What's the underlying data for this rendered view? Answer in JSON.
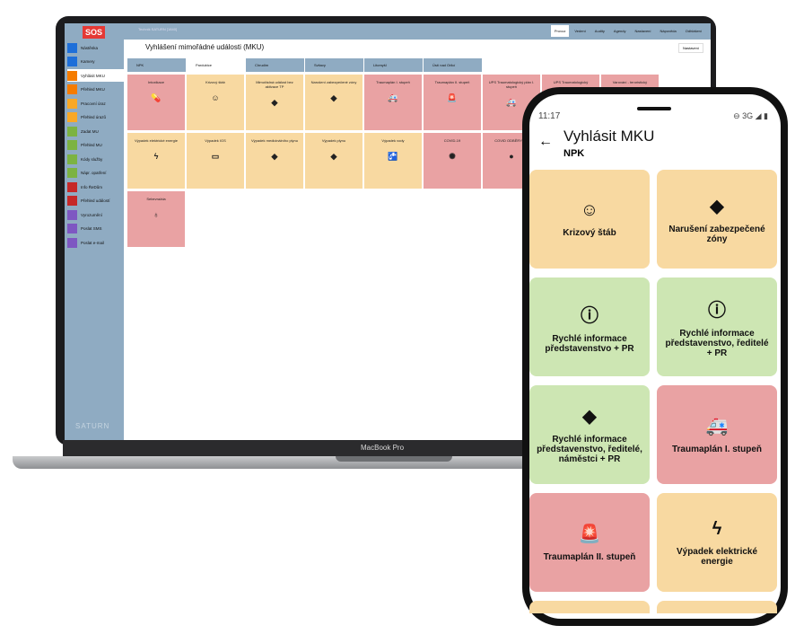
{
  "laptop": {
    "logo": "SOS",
    "user": "Technik SATURN [1840]",
    "brand": "SATURN",
    "model_label": "MacBook Pro",
    "page_title": "Vyhlášení mimořádné události (MKU)",
    "settings_button": "Nastavení",
    "nav": [
      "Provoz",
      "Vedení",
      "Audity",
      "Agendy",
      "Nastavení",
      "Nápověda",
      "Odhlášení"
    ],
    "sidebar": [
      {
        "label": "Nástěnka",
        "color": "#1e6fd9"
      },
      {
        "label": "Kamery",
        "color": "#1e6fd9"
      },
      {
        "label": "Vyhlásit MKU",
        "color": "#f57c00"
      },
      {
        "label": "Přehled MKU",
        "color": "#f57c00"
      },
      {
        "label": "Pracovní úraz",
        "color": "#f9a825"
      },
      {
        "label": "Přehled úrazů",
        "color": "#f9a825"
      },
      {
        "label": "Zadat MU",
        "color": "#7cb342"
      },
      {
        "label": "Přehled MU",
        "color": "#7cb342"
      },
      {
        "label": "Kódy služby",
        "color": "#7cb342"
      },
      {
        "label": "Nápr. opatření",
        "color": "#7cb342"
      },
      {
        "label": "Info ŘeDům",
        "color": "#c62828"
      },
      {
        "label": "Přehled událostí",
        "color": "#c62828"
      },
      {
        "label": "Vyrozumění",
        "color": "#7e57c2"
      },
      {
        "label": "Poslat SMS",
        "color": "#7e57c2"
      },
      {
        "label": "Poslat e-mail",
        "color": "#7e57c2"
      }
    ],
    "tabs": [
      "NPK",
      "Pardubice",
      "Chrudim",
      "Svitavy",
      "Litomyšl",
      "Ústí nad Orlicí"
    ],
    "active_tab": "Pardubice",
    "tiles": [
      {
        "label": "Intoxikace",
        "color": "r",
        "icon": "💊"
      },
      {
        "label": "Krizový štáb",
        "color": "o",
        "icon": "☺"
      },
      {
        "label": "Mimořádná událost bez aktivace TP",
        "color": "o",
        "icon": "◆"
      },
      {
        "label": "Narušení zabezpečené zóny",
        "color": "o",
        "icon": "◆"
      },
      {
        "label": "Traumaplán I. stupeň",
        "color": "r",
        "icon": "🚑"
      },
      {
        "label": "Traumaplán II. stupeň",
        "color": "r",
        "icon": "🚨"
      },
      {
        "label": "UPS Traumatologický plán I. stupeň",
        "color": "r",
        "icon": "🚑"
      },
      {
        "label": "UPS Traumatologický",
        "color": "r",
        "icon": ""
      },
      {
        "label": "Varování - teroristický",
        "color": "r",
        "icon": ""
      },
      {
        "label": "Výpadek elektrické energie",
        "color": "o",
        "icon": "ϟ"
      },
      {
        "label": "Výpadek IGS",
        "color": "o",
        "icon": "▭"
      },
      {
        "label": "Výpadek medicinálního plynu",
        "color": "o",
        "icon": "◆"
      },
      {
        "label": "Výpadek plynu",
        "color": "o",
        "icon": "◆"
      },
      {
        "label": "Výpadek vody",
        "color": "o",
        "icon": "🚰"
      },
      {
        "label": "COVID-19",
        "color": "r",
        "icon": "✺"
      },
      {
        "label": "COVID ODBĚRY - ...",
        "color": "r",
        "icon": "●"
      },
      {
        "label": "Sebevražda",
        "color": "r",
        "icon": "♁"
      }
    ]
  },
  "phone": {
    "time": "11:17",
    "status": "⊖ 3G ◢ ▮",
    "title": "Vyhlásit MKU",
    "subtitle": "NPK",
    "tiles": [
      {
        "label": "Krizový štáb",
        "color": "o",
        "icon": "☺"
      },
      {
        "label": "Narušení zabezpečené zóny",
        "color": "o",
        "icon": "◆"
      },
      {
        "label": "Rychlé informace představenstvo + PR",
        "color": "g",
        "icon": "ⓘ"
      },
      {
        "label": "Rychlé informace představenstvo, ředitelé + PR",
        "color": "g",
        "icon": "ⓘ"
      },
      {
        "label": "Rychlé informace představenstvo, ředitelé, náměstci + PR",
        "color": "g",
        "icon": "◆"
      },
      {
        "label": "Traumaplán I. stupeň",
        "color": "r",
        "icon": "🚑"
      },
      {
        "label": "Traumaplán II. stupeň",
        "color": "r",
        "icon": "🚨"
      },
      {
        "label": "Výpadek elektrické energie",
        "color": "o",
        "icon": "ϟ"
      },
      {
        "label": "",
        "color": "o",
        "icon": ""
      },
      {
        "label": "",
        "color": "o",
        "icon": ""
      }
    ]
  }
}
